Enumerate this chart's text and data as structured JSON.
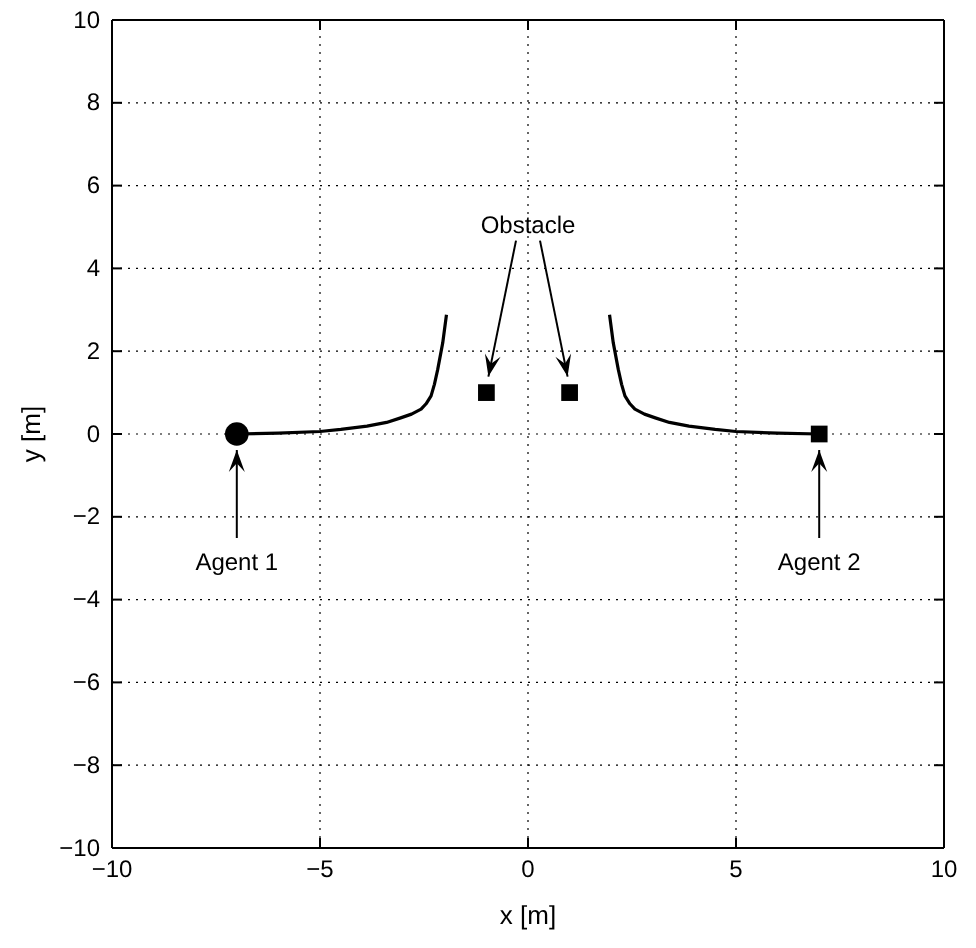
{
  "chart_data": {
    "type": "line",
    "xlabel": "x [m]",
    "ylabel": "y [m]",
    "xlim": [
      -10,
      10
    ],
    "ylim": [
      -10,
      10
    ],
    "xticks": [
      -10,
      -5,
      0,
      5,
      10
    ],
    "yticks": [
      -10,
      -8,
      -6,
      -4,
      -2,
      0,
      2,
      4,
      6,
      8,
      10
    ],
    "grid": true,
    "series": [
      {
        "color": "#000000",
        "x": [
          -7.02,
          -6,
          -5,
          -4.5,
          -3.87,
          -3.4,
          -3.06,
          -2.8,
          -2.57,
          -2.45,
          -2.33,
          -2.25,
          -2.17,
          -2.05,
          -1.96
        ],
        "values": [
          0,
          0.02,
          0.06,
          0.11,
          0.19,
          0.28,
          0.39,
          0.48,
          0.6,
          0.73,
          0.92,
          1.2,
          1.56,
          2.2,
          2.88
        ]
      },
      {
        "color": "#000000",
        "x": [
          7,
          6,
          5,
          4.5,
          3.87,
          3.4,
          3.06,
          2.8,
          2.57,
          2.45,
          2.33,
          2.25,
          2.17,
          2.05,
          1.96
        ],
        "values": [
          0,
          0.02,
          0.06,
          0.11,
          0.19,
          0.28,
          0.39,
          0.48,
          0.6,
          0.73,
          0.92,
          1.2,
          1.56,
          2.2,
          2.88
        ]
      },
      {
        "type": "scatter",
        "marker": "circle",
        "color": "#000000",
        "x": [
          -7
        ],
        "values": [
          0
        ]
      },
      {
        "type": "scatter",
        "marker": "square",
        "color": "#000000",
        "x": [
          7
        ],
        "values": [
          0
        ]
      },
      {
        "type": "scatter",
        "marker": "square",
        "color": "#000000",
        "x": [
          -1,
          1
        ],
        "values": [
          1,
          1
        ]
      }
    ],
    "annotations": [
      {
        "text": "Agent 1",
        "x": -7,
        "y": 0
      },
      {
        "text": "Agent 2",
        "x": 7,
        "y": 0
      },
      {
        "text": "Obstacle",
        "x": -1,
        "y": 1
      }
    ]
  }
}
